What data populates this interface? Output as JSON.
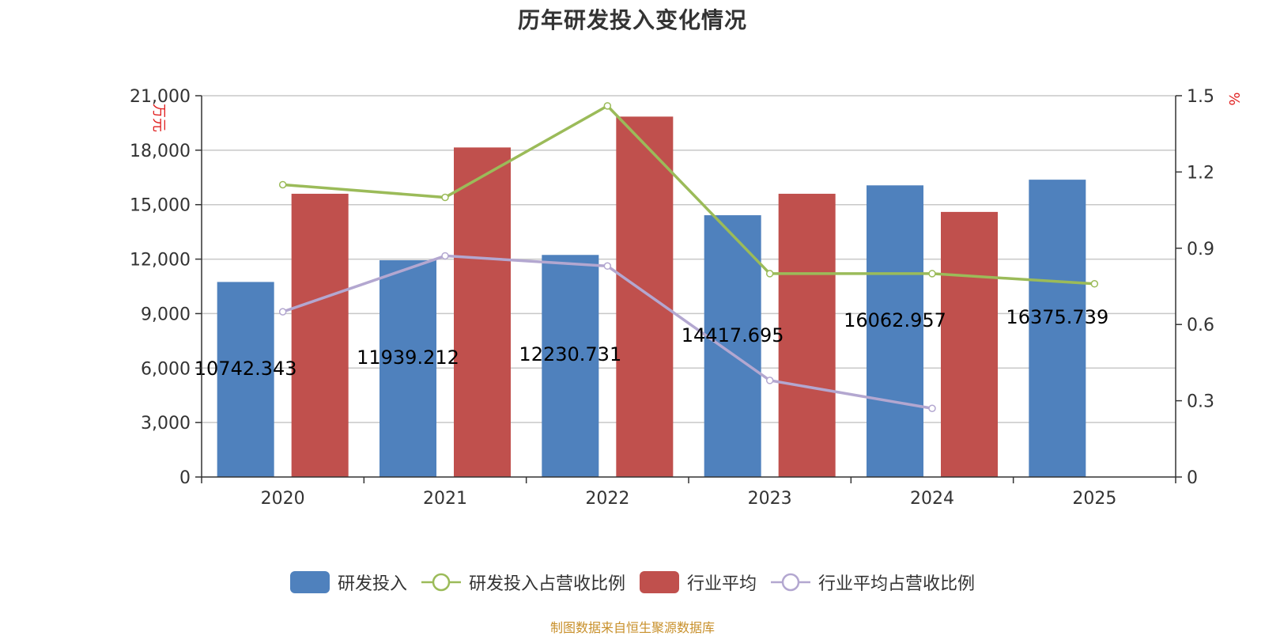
{
  "title": "历年研发投入变化情况",
  "source": "制图数据来自恒生聚源数据库",
  "colors": {
    "rd_bar": "#4f81bd",
    "industry_bar": "#c0504d",
    "rd_ratio_line": "#9bbb59",
    "industry_ratio_line": "#b3a7d0",
    "axis_unit": "#e02020",
    "grid": "#c8c8c8"
  },
  "chart_data": {
    "type": "bar",
    "title": "历年研发投入变化情况",
    "categories": [
      "2020",
      "2021",
      "2022",
      "2023",
      "2024",
      "2025"
    ],
    "y_left": {
      "unit_label": "万元",
      "min": 0,
      "max": 21000,
      "ticks": [
        "0",
        "3,000",
        "6,000",
        "9,000",
        "12,000",
        "15,000",
        "18,000",
        "21,000"
      ]
    },
    "y_right": {
      "unit_label": "%",
      "min": 0,
      "max": 1.5,
      "ticks": [
        "0",
        "0.3",
        "0.6",
        "0.9",
        "1.2",
        "1.5"
      ]
    },
    "grid": true,
    "legend_position": "bottom",
    "series": [
      {
        "name": "研发投入",
        "kind": "bar",
        "axis": "left",
        "values": [
          10742.343,
          11939.212,
          12230.731,
          14417.695,
          16062.957,
          16375.739
        ],
        "labels": [
          "10742.343",
          "11939.212",
          "12230.731",
          "14417.695",
          "16062.957",
          "16375.739"
        ]
      },
      {
        "name": "研发投入占营收比例",
        "kind": "line",
        "axis": "right",
        "values": [
          1.15,
          1.1,
          1.46,
          0.8,
          0.8,
          0.76
        ]
      },
      {
        "name": "行业平均",
        "kind": "bar",
        "axis": "left",
        "values": [
          15600,
          18150,
          19850,
          15600,
          14600,
          null
        ]
      },
      {
        "name": "行业平均占营收比例",
        "kind": "line",
        "axis": "right",
        "values": [
          0.65,
          0.87,
          0.83,
          0.38,
          0.27,
          null
        ]
      }
    ]
  }
}
